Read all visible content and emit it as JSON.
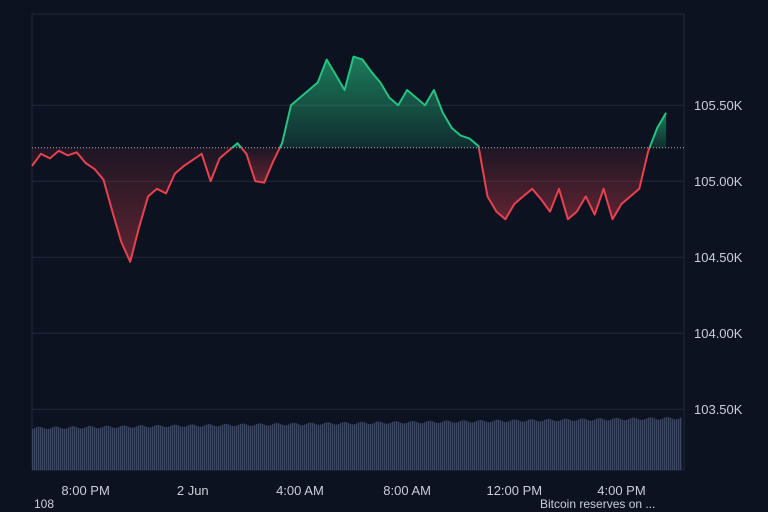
{
  "chart_data": {
    "type": "area",
    "baseline": 105220,
    "ylim": [
      103100,
      106100
    ],
    "y_ticks": [
      103500,
      104000,
      104500,
      105000,
      105500
    ],
    "y_tick_labels": [
      "103.50K",
      "104.00K",
      "104.50K",
      "105.00K",
      "105.50K"
    ],
    "x_tick_positions": [
      6,
      18,
      30,
      42,
      54,
      66
    ],
    "x_tick_labels": [
      "8:00 PM",
      "2 Jun",
      "4:00 AM",
      "8:00 AM",
      "12:00 PM",
      "4:00 PM"
    ],
    "x_range": [
      0,
      73
    ],
    "colors": {
      "up": "#26c281",
      "down": "#e8414f",
      "grid": "#1f2a3c",
      "volume": "#3a4766"
    },
    "series": [
      {
        "values": [
          105100,
          105180,
          105150,
          105200,
          105170,
          105190,
          105120,
          105080,
          105010,
          104800,
          104600,
          104470,
          104700,
          104900,
          104950,
          104920,
          105050,
          105100,
          105140,
          105180,
          105000,
          105150,
          105200,
          105250,
          105180,
          105000,
          104990,
          105130,
          105250,
          105500,
          105550,
          105600,
          105650,
          105800,
          105700,
          105600,
          105820,
          105800,
          105720,
          105650,
          105550,
          105500,
          105600,
          105550,
          105500,
          105600,
          105450,
          105350,
          105300,
          105280,
          105230,
          104900,
          104800,
          104750,
          104850,
          104900,
          104950,
          104880,
          104800,
          104950,
          104750,
          104800,
          104900,
          104780,
          104950,
          104750,
          104850,
          104900,
          104950,
          105200,
          105350,
          105450
        ]
      }
    ],
    "volume_level": 0.6
  },
  "footer": {
    "left": "108",
    "right": "Bitcoin reserves on ..."
  }
}
